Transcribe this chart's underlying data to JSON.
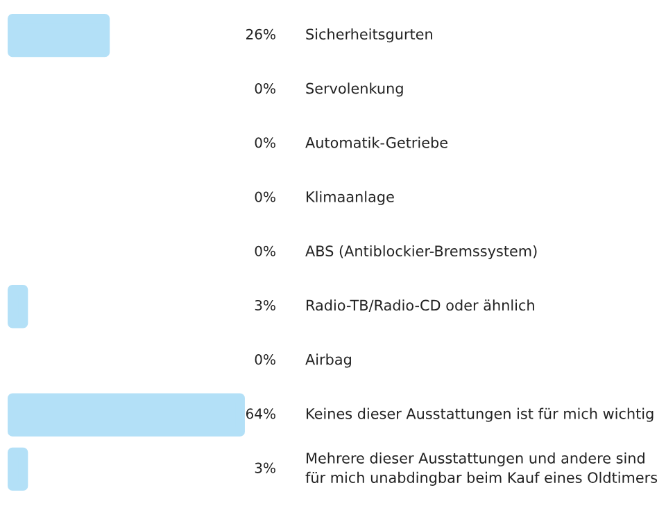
{
  "chart_data": {
    "type": "bar",
    "orientation": "horizontal",
    "categories": [
      "Sicherheitsgurten",
      "Servolenkung",
      "Automatik-Getriebe",
      "Klimaanlage",
      "ABS (Antiblockier-Bremssystem)",
      "Radio-TB/Radio-CD oder ähnlich",
      "Airbag",
      "Keines dieser Ausstattungen ist für mich wichtig",
      "Mehrere dieser Ausstattungen und andere sind für mich unabdingbar beim Kauf eines Oldtimers"
    ],
    "values": [
      26,
      0,
      0,
      0,
      0,
      3,
      0,
      64,
      3
    ],
    "value_labels": [
      "26%",
      "0%",
      "0%",
      "0%",
      "0%",
      "3%",
      "0%",
      "64%",
      "3%"
    ],
    "color": "#b3e0f7"
  }
}
